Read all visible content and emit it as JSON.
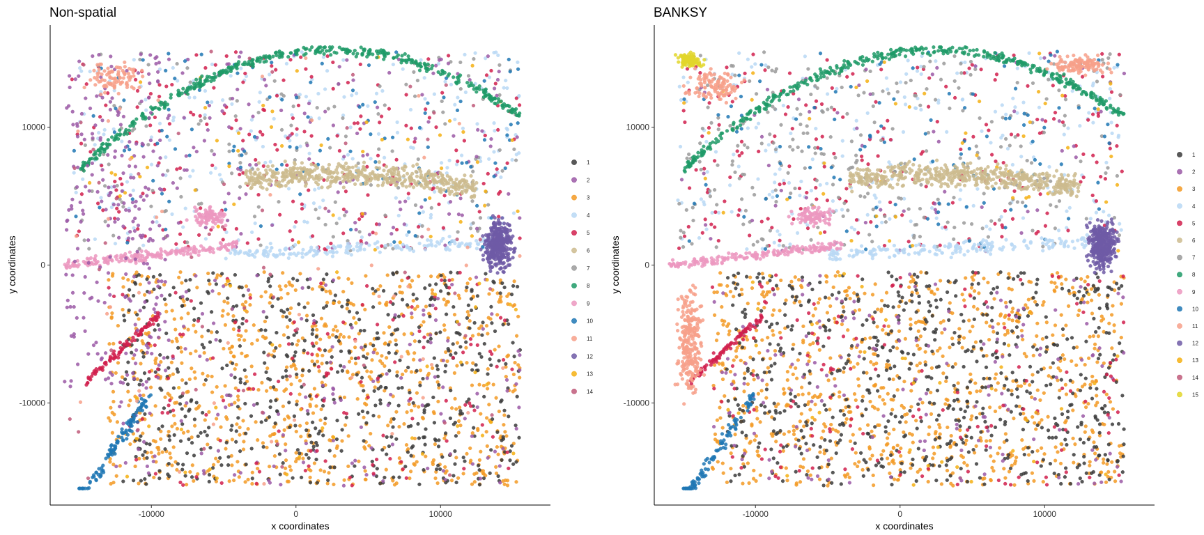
{
  "chart_data": [
    {
      "type": "scatter",
      "title": "Non-spatial",
      "xlabel": "x coordinates",
      "ylabel": "y coordinates",
      "xlim": [
        -17000,
        17600
      ],
      "ylim": [
        -17400,
        17400
      ],
      "xticks": [
        -10000,
        0,
        10000
      ],
      "yticks": [
        -10000,
        0,
        10000
      ],
      "grid": false,
      "legend_position": "right",
      "legend": [
        "1",
        "2",
        "3",
        "4",
        "5",
        "6",
        "7",
        "8",
        "9",
        "10",
        "11",
        "12",
        "13",
        "14"
      ],
      "colors": {
        "1": "#3b3b3b",
        "2": "#9b59a6",
        "3": "#f39a25",
        "4": "#b9d8f4",
        "5": "#d1204e",
        "6": "#ccbb8e",
        "7": "#9a9a9a",
        "8": "#1f9a67",
        "9": "#ec98c0",
        "10": "#1f77b4",
        "11": "#f7a08a",
        "12": "#6f5aa6",
        "13": "#f5b013",
        "14": "#c05b7a"
      }
    },
    {
      "type": "scatter",
      "title": "BANKSY",
      "xlabel": "x coordinates",
      "ylabel": "y coordinates",
      "xlim": [
        -17000,
        17600
      ],
      "ylim": [
        -17400,
        17400
      ],
      "xticks": [
        -10000,
        0,
        10000
      ],
      "yticks": [
        -10000,
        0,
        10000
      ],
      "grid": false,
      "legend_position": "right",
      "legend": [
        "1",
        "2",
        "3",
        "4",
        "5",
        "6",
        "7",
        "8",
        "9",
        "10",
        "11",
        "12",
        "13",
        "14",
        "15"
      ],
      "colors": {
        "1": "#3b3b3b",
        "2": "#9b59a6",
        "3": "#f39a25",
        "4": "#b9d8f4",
        "5": "#d1204e",
        "6": "#ccbb8e",
        "7": "#9a9a9a",
        "8": "#1f9a67",
        "9": "#ec98c0",
        "10": "#1f77b4",
        "11": "#f7a08a",
        "12": "#6f5aa6",
        "13": "#f5b013",
        "14": "#c05b7a",
        "15": "#e2d62a"
      }
    }
  ]
}
